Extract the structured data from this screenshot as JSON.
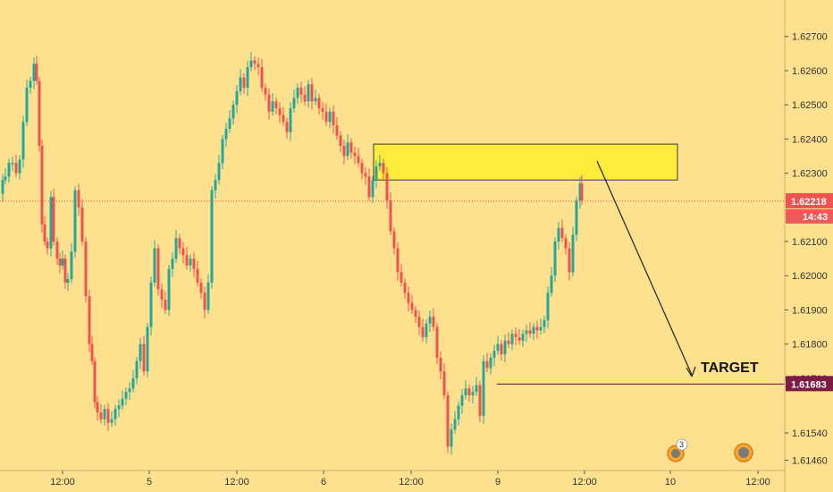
{
  "chart_data": {
    "type": "candlestick",
    "y_axis": {
      "ticks": [
        "1.62700",
        "1.62600",
        "1.62500",
        "1.62400",
        "1.62300",
        "1.62100",
        "1.62000",
        "1.61900",
        "1.61800",
        "1.61700",
        "1.61540",
        "1.61460"
      ],
      "range": [
        1.6143,
        1.6277
      ]
    },
    "x_axis": {
      "ticks": [
        "12:00",
        "5",
        "12:00",
        "6",
        "12:00",
        "9",
        "12:00",
        "10",
        "12:00"
      ]
    },
    "current_price": {
      "label": "1.62218",
      "value": 1.62218,
      "countdown": "14:43",
      "color": "#ef5350"
    },
    "target": {
      "label": "TARGET",
      "price_label": "1.61683",
      "value": 1.61683,
      "color": "#7b1c44"
    },
    "zone": {
      "low": 1.6228,
      "high": 1.62385,
      "color": "#ffeb3b"
    },
    "candles_close_path": [
      [
        0,
        1.6224
      ],
      [
        3,
        1.6228
      ],
      [
        6,
        1.6229
      ],
      [
        10,
        1.6233
      ],
      [
        14,
        1.6233
      ],
      [
        18,
        1.623
      ],
      [
        22,
        1.6234
      ],
      [
        26,
        1.6245
      ],
      [
        30,
        1.6255
      ],
      [
        34,
        1.6257
      ],
      [
        38,
        1.6262
      ],
      [
        41,
        1.6257
      ],
      [
        44,
        1.6238
      ],
      [
        47,
        1.6215
      ],
      [
        50,
        1.621
      ],
      [
        53,
        1.6208
      ],
      [
        57,
        1.6223
      ],
      [
        60,
        1.621
      ],
      [
        64,
        1.6205
      ],
      [
        67,
        1.6203
      ],
      [
        70,
        1.6205
      ],
      [
        73,
        1.6198
      ],
      [
        76,
        1.6199
      ],
      [
        80,
        1.6207
      ],
      [
        84,
        1.6225
      ],
      [
        88,
        1.622
      ],
      [
        92,
        1.621
      ],
      [
        96,
        1.6194
      ],
      [
        100,
        1.618
      ],
      [
        103,
        1.6175
      ],
      [
        106,
        1.6163
      ],
      [
        109,
        1.616
      ],
      [
        113,
        1.6158
      ],
      [
        117,
        1.6161
      ],
      [
        121,
        1.6157
      ],
      [
        125,
        1.6158
      ],
      [
        129,
        1.6161
      ],
      [
        133,
        1.6162
      ],
      [
        137,
        1.6164
      ],
      [
        141,
        1.6166
      ],
      [
        145,
        1.6167
      ],
      [
        149,
        1.617
      ],
      [
        153,
        1.6175
      ],
      [
        157,
        1.618
      ],
      [
        161,
        1.6172
      ],
      [
        165,
        1.6185
      ],
      [
        169,
        1.6198
      ],
      [
        173,
        1.6208
      ],
      [
        177,
        1.6196
      ],
      [
        181,
        1.6193
      ],
      [
        185,
        1.619
      ],
      [
        189,
        1.6202
      ],
      [
        193,
        1.6205
      ],
      [
        197,
        1.6211
      ],
      [
        201,
        1.6208
      ],
      [
        205,
        1.6206
      ],
      [
        209,
        1.6203
      ],
      [
        213,
        1.6205
      ],
      [
        217,
        1.6202
      ],
      [
        221,
        1.6198
      ],
      [
        225,
        1.6195
      ],
      [
        229,
        1.619
      ],
      [
        233,
        1.6198
      ],
      [
        237,
        1.6225
      ],
      [
        241,
        1.6228
      ],
      [
        245,
        1.6233
      ],
      [
        249,
        1.624
      ],
      [
        253,
        1.6243
      ],
      [
        257,
        1.6246
      ],
      [
        261,
        1.625
      ],
      [
        265,
        1.6254
      ],
      [
        269,
        1.6258
      ],
      [
        273,
        1.6255
      ],
      [
        277,
        1.6261
      ],
      [
        281,
        1.6263
      ],
      [
        285,
        1.6262
      ],
      [
        289,
        1.6261
      ],
      [
        293,
        1.6255
      ],
      [
        297,
        1.6253
      ],
      [
        301,
        1.6248
      ],
      [
        305,
        1.6251
      ],
      [
        309,
        1.6249
      ],
      [
        313,
        1.6247
      ],
      [
        317,
        1.6245
      ],
      [
        321,
        1.6242
      ],
      [
        325,
        1.6249
      ],
      [
        329,
        1.6252
      ],
      [
        333,
        1.6255
      ],
      [
        337,
        1.6253
      ],
      [
        341,
        1.6251
      ],
      [
        345,
        1.6256
      ],
      [
        349,
        1.6251
      ],
      [
        353,
        1.6252
      ],
      [
        357,
        1.6249
      ],
      [
        361,
        1.6248
      ],
      [
        365,
        1.6245
      ],
      [
        369,
        1.6248
      ],
      [
        373,
        1.6244
      ],
      [
        377,
        1.6241
      ],
      [
        381,
        1.6238
      ],
      [
        385,
        1.6235
      ],
      [
        389,
        1.6239
      ],
      [
        393,
        1.6236
      ],
      [
        397,
        1.6235
      ],
      [
        401,
        1.6233
      ],
      [
        405,
        1.623
      ],
      [
        409,
        1.6229
      ],
      [
        413,
        1.6223
      ],
      [
        417,
        1.6228
      ],
      [
        421,
        1.6232
      ],
      [
        425,
        1.6233
      ],
      [
        429,
        1.623
      ],
      [
        433,
        1.6222
      ],
      [
        437,
        1.6213
      ],
      [
        441,
        1.6208
      ],
      [
        445,
        1.6201
      ],
      [
        449,
        1.6198
      ],
      [
        453,
        1.6195
      ],
      [
        457,
        1.6192
      ],
      [
        461,
        1.619
      ],
      [
        465,
        1.6188
      ],
      [
        469,
        1.6185
      ],
      [
        473,
        1.6182
      ],
      [
        477,
        1.6186
      ],
      [
        481,
        1.6188
      ],
      [
        485,
        1.6185
      ],
      [
        489,
        1.6176
      ],
      [
        493,
        1.6172
      ],
      [
        497,
        1.6165
      ],
      [
        501,
        1.615
      ],
      [
        505,
        1.6155
      ],
      [
        509,
        1.6158
      ],
      [
        513,
        1.6162
      ],
      [
        517,
        1.6165
      ],
      [
        521,
        1.6167
      ],
      [
        525,
        1.6165
      ],
      [
        529,
        1.6166
      ],
      [
        533,
        1.6168
      ],
      [
        537,
        1.6159
      ],
      [
        541,
        1.6175
      ],
      [
        545,
        1.6173
      ],
      [
        549,
        1.6176
      ],
      [
        553,
        1.6178
      ],
      [
        557,
        1.618
      ],
      [
        561,
        1.6177
      ],
      [
        565,
        1.6181
      ],
      [
        569,
        1.618
      ],
      [
        573,
        1.6183
      ],
      [
        577,
        1.6182
      ],
      [
        581,
        1.6181
      ],
      [
        585,
        1.6183
      ],
      [
        589,
        1.6184
      ],
      [
        593,
        1.6183
      ],
      [
        597,
        1.6185
      ],
      [
        601,
        1.6184
      ],
      [
        605,
        1.6185
      ],
      [
        609,
        1.6187
      ],
      [
        613,
        1.6195
      ],
      [
        617,
        1.62
      ],
      [
        621,
        1.621
      ],
      [
        625,
        1.6214
      ],
      [
        629,
        1.6211
      ],
      [
        633,
        1.6208
      ],
      [
        637,
        1.6201
      ],
      [
        641,
        1.6212
      ],
      [
        645,
        1.6222
      ],
      [
        649,
        1.6227
      ],
      [
        651,
        1.6222
      ]
    ]
  }
}
